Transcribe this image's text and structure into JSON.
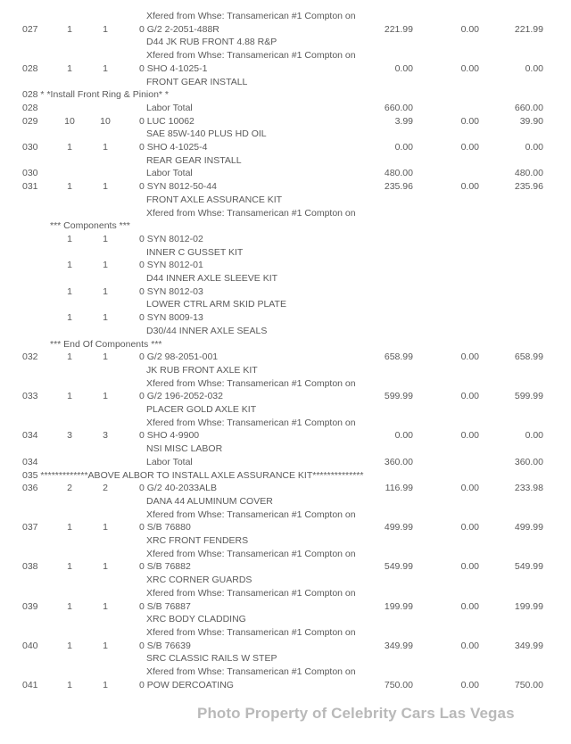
{
  "rows": [
    {
      "kind": "xfer",
      "text": "Xfered from Whse: Transamerican #1 Compton on"
    },
    {
      "kind": "item",
      "no": "027",
      "q1": "1",
      "q2": "1",
      "part": "0 G/2 2-2051-488R",
      "price": "221.99",
      "disc": "0.00",
      "amount": "221.99"
    },
    {
      "kind": "desc",
      "text": "D44 JK RUB FRONT 4.88 R&P"
    },
    {
      "kind": "xfer",
      "text": "Xfered from Whse: Transamerican #1 Compton on"
    },
    {
      "kind": "item",
      "no": "028",
      "q1": "1",
      "q2": "1",
      "part": "0 SHO 4-1025-1",
      "price": "0.00",
      "disc": "0.00",
      "amount": "0.00"
    },
    {
      "kind": "desc",
      "text": "FRONT GEAR INSTALL"
    },
    {
      "kind": "note",
      "text": "028 * *Install Front Ring & Pinion* *"
    },
    {
      "kind": "labor",
      "no": "028",
      "text": "Labor Total",
      "price": "660.00",
      "amount": "660.00"
    },
    {
      "kind": "item",
      "no": "029",
      "q1": "10",
      "q2": "10",
      "part": "0 LUC 10062",
      "price": "3.99",
      "disc": "0.00",
      "amount": "39.90"
    },
    {
      "kind": "desc",
      "text": "SAE 85W-140 PLUS HD OIL"
    },
    {
      "kind": "item",
      "no": "030",
      "q1": "1",
      "q2": "1",
      "part": "0 SHO 4-1025-4",
      "price": "0.00",
      "disc": "0.00",
      "amount": "0.00"
    },
    {
      "kind": "desc",
      "text": "REAR GEAR INSTALL"
    },
    {
      "kind": "labor",
      "no": "030",
      "text": "Labor Total",
      "price": "480.00",
      "amount": "480.00"
    },
    {
      "kind": "item",
      "no": "031",
      "q1": "1",
      "q2": "1",
      "part": "0 SYN 8012-50-44",
      "price": "235.96",
      "disc": "0.00",
      "amount": "235.96"
    },
    {
      "kind": "desc",
      "text": "FRONT AXLE ASSURANCE KIT"
    },
    {
      "kind": "xfer",
      "text": "Xfered from Whse: Transamerican #1 Compton on"
    },
    {
      "kind": "comp",
      "text": "***  Components  ***"
    },
    {
      "kind": "item",
      "q1": "1",
      "q2": "1",
      "part": "0 SYN 8012-02"
    },
    {
      "kind": "desc",
      "text": "INNER C GUSSET KIT"
    },
    {
      "kind": "item",
      "q1": "1",
      "q2": "1",
      "part": "0 SYN 8012-01"
    },
    {
      "kind": "desc",
      "text": "D44 INNER AXLE SLEEVE KIT"
    },
    {
      "kind": "item",
      "q1": "1",
      "q2": "1",
      "part": "0 SYN 8012-03"
    },
    {
      "kind": "desc",
      "text": "LOWER CTRL ARM SKID PLATE"
    },
    {
      "kind": "item",
      "q1": "1",
      "q2": "1",
      "part": "0 SYN 8009-13"
    },
    {
      "kind": "desc",
      "text": "D30/44 INNER AXLE SEALS"
    },
    {
      "kind": "comp",
      "text": "***  End Of Components  ***"
    },
    {
      "kind": "item",
      "no": "032",
      "q1": "1",
      "q2": "1",
      "part": "0 G/2 98-2051-001",
      "price": "658.99",
      "disc": "0.00",
      "amount": "658.99"
    },
    {
      "kind": "desc",
      "text": "JK RUB FRONT AXLE KIT"
    },
    {
      "kind": "xfer",
      "text": "Xfered from Whse: Transamerican #1 Compton on"
    },
    {
      "kind": "item",
      "no": "033",
      "q1": "1",
      "q2": "1",
      "part": "0 G/2 196-2052-032",
      "price": "599.99",
      "disc": "0.00",
      "amount": "599.99"
    },
    {
      "kind": "desc",
      "text": "PLACER GOLD AXLE KIT"
    },
    {
      "kind": "xfer",
      "text": "Xfered from Whse: Transamerican #1 Compton on"
    },
    {
      "kind": "item",
      "no": "034",
      "q1": "3",
      "q2": "3",
      "part": "0 SHO 4-9900",
      "price": "0.00",
      "disc": "0.00",
      "amount": "0.00"
    },
    {
      "kind": "desc",
      "text": "NSI MISC LABOR"
    },
    {
      "kind": "labor",
      "no": "034",
      "text": "Labor Total",
      "price": "360.00",
      "amount": "360.00"
    },
    {
      "kind": "note",
      "text": "035 *************ABOVE ALBOR TO INSTALL AXLE ASSURANCE KIT**************"
    },
    {
      "kind": "item",
      "no": "036",
      "q1": "2",
      "q2": "2",
      "part": "0 G/2 40-2033ALB",
      "price": "116.99",
      "disc": "0.00",
      "amount": "233.98"
    },
    {
      "kind": "desc",
      "text": "DANA 44 ALUMINUM COVER"
    },
    {
      "kind": "xfer",
      "text": "Xfered from Whse: Transamerican #1 Compton on"
    },
    {
      "kind": "item",
      "no": "037",
      "q1": "1",
      "q2": "1",
      "part": "0 S/B 76880",
      "price": "499.99",
      "disc": "0.00",
      "amount": "499.99"
    },
    {
      "kind": "desc",
      "text": "XRC FRONT FENDERS"
    },
    {
      "kind": "xfer",
      "text": "Xfered from Whse: Transamerican #1 Compton on"
    },
    {
      "kind": "item",
      "no": "038",
      "q1": "1",
      "q2": "1",
      "part": "0 S/B 76882",
      "price": "549.99",
      "disc": "0.00",
      "amount": "549.99"
    },
    {
      "kind": "desc",
      "text": "XRC CORNER GUARDS"
    },
    {
      "kind": "xfer",
      "text": "Xfered from Whse: Transamerican #1 Compton on"
    },
    {
      "kind": "item",
      "no": "039",
      "q1": "1",
      "q2": "1",
      "part": "0 S/B 76887",
      "price": "199.99",
      "disc": "0.00",
      "amount": "199.99"
    },
    {
      "kind": "desc",
      "text": "XRC BODY CLADDING"
    },
    {
      "kind": "xfer",
      "text": "Xfered from Whse: Transamerican #1 Compton on"
    },
    {
      "kind": "item",
      "no": "040",
      "q1": "1",
      "q2": "1",
      "part": "0 S/B 76639",
      "price": "349.99",
      "disc": "0.00",
      "amount": "349.99"
    },
    {
      "kind": "desc",
      "text": "SRC CLASSIC RAILS W STEP"
    },
    {
      "kind": "xfer",
      "text": "Xfered from Whse: Transamerican #1 Compton on"
    },
    {
      "kind": "item",
      "no": "041",
      "q1": "1",
      "q2": "1",
      "part": "0 POW DERCOATING",
      "price": "750.00",
      "disc": "0.00",
      "amount": "750.00"
    }
  ],
  "watermark": "Photo Property of Celebrity Cars Las Vegas"
}
